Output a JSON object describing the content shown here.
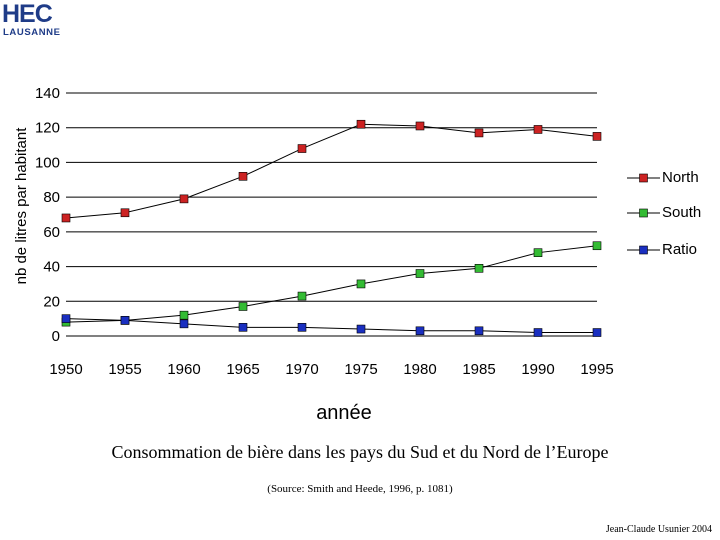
{
  "logo": {
    "main": "HEC",
    "sub": "LAUSANNE"
  },
  "chart_data": {
    "type": "line",
    "title": "",
    "xlabel": "année",
    "ylabel": "nb de litres par habitant",
    "x": [
      1950,
      1955,
      1960,
      1965,
      1970,
      1975,
      1980,
      1985,
      1990,
      1995
    ],
    "xlim": [
      1950,
      1995
    ],
    "ylim": [
      0,
      140
    ],
    "yticks": [
      0,
      20,
      40,
      60,
      80,
      100,
      120,
      140
    ],
    "grid": true,
    "legend_position": "right",
    "series": [
      {
        "name": "North",
        "color": "#cc2222",
        "values": [
          68,
          71,
          79,
          92,
          108,
          122,
          121,
          117,
          119,
          115
        ]
      },
      {
        "name": "South",
        "color": "#33bb33",
        "values": [
          8,
          9,
          12,
          17,
          23,
          30,
          36,
          39,
          48,
          52
        ]
      },
      {
        "name": "Ratio",
        "color": "#1a2fc0",
        "values": [
          10,
          9,
          7,
          5,
          5,
          4,
          3,
          3,
          2,
          2
        ]
      }
    ]
  },
  "caption": "Consommation de bière dans les pays du Sud et du Nord de l’Europe",
  "source": "(Source: Smith and Heede, 1996, p. 1081)",
  "author": "Jean-Claude Usunier 2004"
}
